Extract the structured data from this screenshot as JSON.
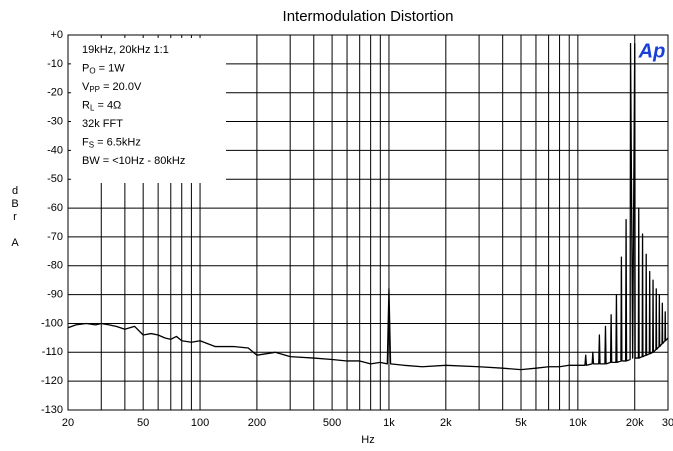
{
  "chart_data": {
    "type": "line",
    "title": "Intermodulation Distortion",
    "xlabel": "Hz",
    "ylabel": "dBr A",
    "logo": "Ap",
    "xscale": "log",
    "grid": true,
    "xlim": [
      20,
      30000
    ],
    "ylim": [
      -130,
      0
    ],
    "xticks": [
      20,
      50,
      100,
      200,
      500,
      {
        "value": 1000,
        "label": "1k"
      },
      {
        "value": 2000,
        "label": "2k"
      },
      {
        "value": 5000,
        "label": "5k"
      },
      {
        "value": 10000,
        "label": "10k"
      },
      {
        "value": 20000,
        "label": "20k"
      },
      {
        "value": 30000,
        "label": "30"
      }
    ],
    "xgrid": [
      30,
      40,
      60,
      70,
      80,
      90,
      300,
      400,
      600,
      700,
      800,
      900,
      3000,
      4000,
      6000,
      7000,
      8000,
      9000
    ],
    "yticks": [
      {
        "value": 0,
        "label": "+0"
      },
      -10,
      -20,
      -30,
      -40,
      -50,
      -60,
      -70,
      -80,
      -90,
      -100,
      -110,
      -120,
      -130
    ],
    "annotations": [
      [
        "19kHz, 20kHz 1:1"
      ],
      [
        "P",
        "O",
        " = 1W"
      ],
      [
        "V",
        "PP",
        " = 20.0V"
      ],
      [
        "R",
        "L",
        " = 4Ω"
      ],
      [
        "32k FFT"
      ],
      [
        "F",
        "S",
        " = 6.5kHz"
      ],
      [
        "BW = <10Hz - 80kHz"
      ]
    ],
    "x": [
      20,
      22,
      25,
      28,
      30,
      33,
      36,
      40,
      45,
      50,
      55,
      60,
      65,
      70,
      75,
      80,
      90,
      100,
      120,
      150,
      180,
      200,
      250,
      300,
      400,
      500,
      600,
      700,
      800,
      900,
      980,
      1000,
      1020,
      1200,
      1500,
      2000,
      3000,
      4000,
      5000,
      6000,
      7000,
      8000,
      9000,
      10000,
      10900,
      11000,
      11100,
      11900,
      12000,
      12100,
      12900,
      13000,
      13100,
      13900,
      14000,
      14100,
      14900,
      15000,
      15100,
      15900,
      16000,
      16100,
      16900,
      17000,
      17100,
      17900,
      18000,
      18100,
      18900,
      19000,
      19500,
      20000,
      20100,
      20900,
      21000,
      21100,
      21900,
      22000,
      22100,
      22900,
      23000,
      23100,
      23900,
      24000,
      24100,
      24900,
      25000,
      25100,
      25900,
      26000,
      26100,
      26900,
      27000,
      27100,
      27900,
      28000,
      28100,
      28900,
      29000,
      29100,
      30000
    ],
    "series": [
      {
        "color": "#000000",
        "values": [
          -101.5,
          -100.5,
          -100,
          -100.5,
          -100,
          -100.5,
          -101,
          -102,
          -101,
          -104,
          -103.5,
          -104,
          -105,
          -105.5,
          -104.5,
          -106,
          -106.5,
          -106,
          -108,
          -108,
          -108.5,
          -111,
          -110,
          -111.5,
          -112,
          -112.5,
          -113,
          -113,
          -114,
          -113.5,
          -114,
          -88,
          -114,
          -114.5,
          -115,
          -114.5,
          -115,
          -115.5,
          -116,
          -115.5,
          -115,
          -115,
          -114.5,
          -114.5,
          -114.5,
          -111,
          -114.5,
          -114,
          -110,
          -114,
          -114,
          -104,
          -114,
          -114,
          -101,
          -114,
          -113.5,
          -97,
          -113.5,
          -113.5,
          -90,
          -113.5,
          -113,
          -77,
          -113,
          -113,
          -64,
          -113,
          -112.5,
          -3,
          -112,
          -3,
          -112,
          -112,
          -60,
          -112,
          -111.5,
          -69,
          -111.5,
          -111,
          -76,
          -111,
          -110.5,
          -82,
          -110.5,
          -110,
          -85,
          -110,
          -109,
          -88,
          -109,
          -108,
          -90,
          -108,
          -107,
          -93,
          -107,
          -106,
          -96,
          -106,
          -105
        ]
      }
    ]
  }
}
